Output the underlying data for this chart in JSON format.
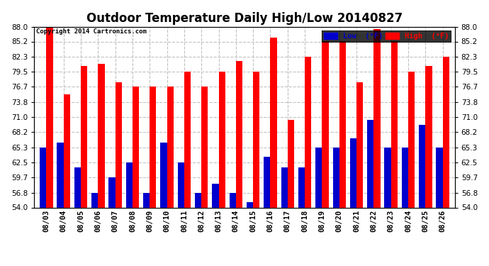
{
  "title": "Outdoor Temperature Daily High/Low 20140827",
  "copyright": "Copyright 2014 Cartronics.com",
  "dates": [
    "08/03",
    "08/04",
    "08/05",
    "08/06",
    "08/07",
    "08/08",
    "08/09",
    "08/10",
    "08/11",
    "08/12",
    "08/13",
    "08/14",
    "08/15",
    "08/16",
    "08/17",
    "08/18",
    "08/19",
    "08/20",
    "08/21",
    "08/22",
    "08/23",
    "08/24",
    "08/25",
    "08/26"
  ],
  "highs": [
    88.0,
    75.2,
    80.6,
    81.0,
    77.5,
    76.7,
    76.7,
    76.7,
    79.5,
    76.7,
    79.5,
    81.5,
    79.5,
    86.0,
    70.5,
    82.3,
    85.2,
    85.2,
    77.5,
    87.5,
    85.2,
    79.5,
    80.6,
    82.3
  ],
  "lows": [
    65.3,
    66.2,
    61.5,
    56.8,
    59.7,
    62.5,
    56.8,
    66.2,
    62.5,
    56.8,
    58.5,
    56.8,
    55.0,
    63.5,
    61.5,
    61.5,
    65.3,
    65.3,
    67.0,
    70.5,
    65.3,
    65.3,
    69.5,
    65.3
  ],
  "high_color": "#ff0000",
  "low_color": "#0000cc",
  "bg_color": "#ffffff",
  "grid_color": "#c0c0c0",
  "ylim_min": 54.0,
  "ylim_max": 88.0,
  "yticks": [
    54.0,
    56.8,
    59.7,
    62.5,
    65.3,
    68.2,
    71.0,
    73.8,
    76.7,
    79.5,
    82.3,
    85.2,
    88.0
  ],
  "title_fontsize": 12,
  "tick_fontsize": 7.5,
  "legend_label_low": "Low  (°F)",
  "legend_label_high": "High  (°F)"
}
